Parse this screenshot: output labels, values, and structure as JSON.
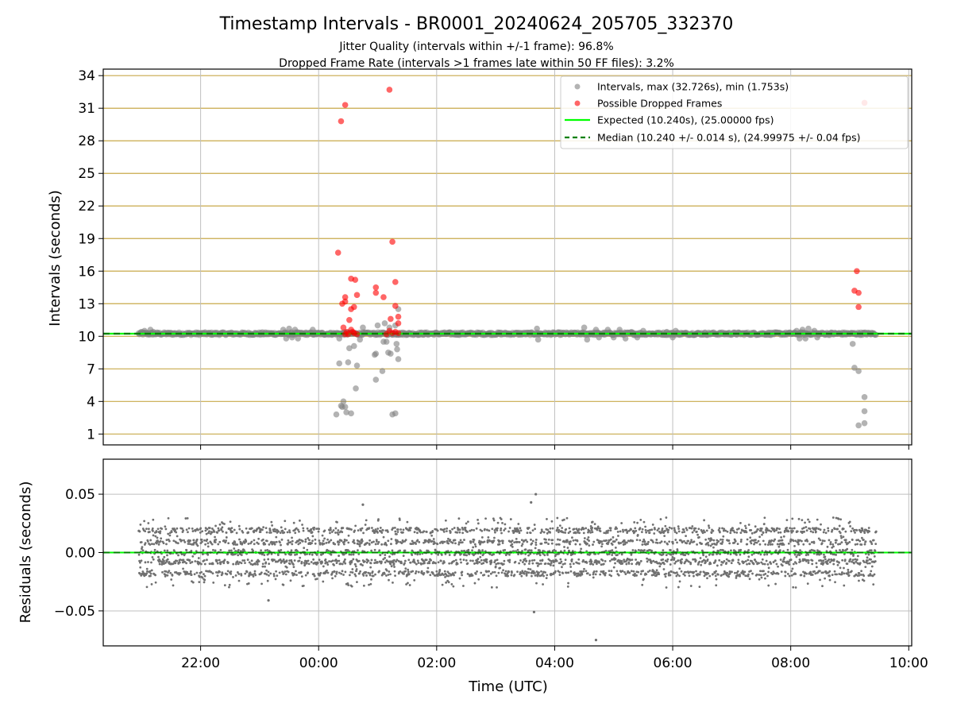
{
  "colors": {
    "intervals": "#808080",
    "dropped": "#ff0000",
    "expected": "#00ff00",
    "median": "#008000",
    "gridline": "#c8a94a",
    "grid_vertical": "#bfbfbf",
    "residuals": "#707070"
  },
  "chart_data": [
    {
      "type": "scatter",
      "title": "Timestamp Intervals - BR0001_20240624_205705_332370",
      "subtitle_lines": [
        "Jitter Quality (intervals within +/-1 frame): 96.8%",
        "Dropped Frame Rate (intervals >1 frames late within 50 FF files): 3.2%"
      ],
      "xlabel": "",
      "ylabel": "Intervals (seconds)",
      "x_unit": "hours since 00:00 UTC",
      "xlim": [
        -3.65,
        10.05
      ],
      "ylim": [
        0,
        34.6
      ],
      "y_ticks": [
        "1",
        "4",
        "7",
        "10",
        "13",
        "16",
        "19",
        "22",
        "25",
        "28",
        "31",
        "34"
      ],
      "y_tick_values": [
        1,
        4,
        7,
        10,
        13,
        16,
        19,
        22,
        25,
        28,
        31,
        34
      ],
      "grid": true,
      "legend_position": "top-right",
      "legend": [
        "Intervals, max (32.726s), min (1.753s)",
        "Possible Dropped Frames",
        "Expected (10.240s), (25.00000 fps)",
        "Median (10.240 +/- 0.014 s), (24.99975 +/- 0.04 fps)"
      ],
      "expected_interval": 10.24,
      "median_interval": 10.24,
      "series": [
        {
          "name": "Intervals, max (32.726s), min (1.753s)",
          "baseline_x_range": [
            -3.05,
            9.45
          ],
          "baseline_y": 10.24,
          "points": [
            [
              -3.0,
              10.4
            ],
            [
              -2.95,
              10.5
            ],
            [
              -2.9,
              10.3
            ],
            [
              -2.85,
              10.6
            ],
            [
              -2.8,
              10.4
            ],
            [
              -0.6,
              10.6
            ],
            [
              -0.55,
              9.8
            ],
            [
              -0.5,
              10.7
            ],
            [
              -0.45,
              9.9
            ],
            [
              -0.4,
              10.6
            ],
            [
              -0.35,
              9.8
            ],
            [
              -0.1,
              10.6
            ],
            [
              -0.05,
              10.2
            ],
            [
              0.35,
              9.8
            ],
            [
              0.3,
              2.8
            ],
            [
              0.35,
              7.5
            ],
            [
              0.38,
              3.6
            ],
            [
              0.4,
              3.5
            ],
            [
              0.42,
              4.0
            ],
            [
              0.45,
              3.5
            ],
            [
              0.47,
              3.0
            ],
            [
              0.5,
              7.6
            ],
            [
              0.52,
              8.9
            ],
            [
              0.55,
              2.9
            ],
            [
              0.6,
              9.1
            ],
            [
              0.63,
              5.2
            ],
            [
              0.65,
              7.3
            ],
            [
              0.7,
              9.7
            ],
            [
              0.75,
              10.8
            ],
            [
              0.95,
              8.3
            ],
            [
              0.97,
              8.4
            ],
            [
              0.97,
              6.0
            ],
            [
              1.0,
              11.0
            ],
            [
              1.08,
              6.8
            ],
            [
              1.1,
              9.5
            ],
            [
              1.12,
              11.2
            ],
            [
              1.15,
              9.5
            ],
            [
              1.18,
              8.5
            ],
            [
              1.2,
              10.8
            ],
            [
              1.22,
              8.4
            ],
            [
              1.25,
              2.8
            ],
            [
              1.3,
              2.9
            ],
            [
              1.32,
              9.3
            ],
            [
              1.33,
              8.8
            ],
            [
              1.35,
              12.5
            ],
            [
              1.35,
              7.9
            ],
            [
              1.3,
              11.0
            ],
            [
              3.7,
              10.7
            ],
            [
              3.72,
              9.7
            ],
            [
              4.5,
              10.8
            ],
            [
              4.55,
              9.7
            ],
            [
              4.6,
              10.3
            ],
            [
              4.7,
              10.6
            ],
            [
              4.75,
              9.9
            ],
            [
              4.9,
              10.6
            ],
            [
              5.0,
              9.9
            ],
            [
              5.1,
              10.6
            ],
            [
              5.2,
              9.8
            ],
            [
              5.3,
              10.4
            ],
            [
              5.4,
              9.9
            ],
            [
              5.5,
              10.5
            ],
            [
              5.9,
              10.4
            ],
            [
              6.0,
              9.9
            ],
            [
              6.05,
              10.5
            ],
            [
              8.1,
              10.5
            ],
            [
              8.15,
              9.8
            ],
            [
              8.2,
              10.6
            ],
            [
              8.25,
              9.8
            ],
            [
              8.3,
              10.7
            ],
            [
              8.4,
              10.5
            ],
            [
              8.45,
              9.9
            ],
            [
              9.05,
              9.3
            ],
            [
              9.08,
              7.1
            ],
            [
              9.15,
              6.8
            ],
            [
              9.15,
              1.8
            ],
            [
              9.25,
              4.4
            ],
            [
              9.25,
              3.1
            ],
            [
              9.25,
              2.0
            ]
          ]
        },
        {
          "name": "Possible Dropped Frames",
          "points": [
            [
              0.33,
              17.7
            ],
            [
              0.38,
              29.8
            ],
            [
              0.45,
              31.3
            ],
            [
              0.55,
              15.3
            ],
            [
              0.62,
              15.2
            ],
            [
              0.65,
              13.8
            ],
            [
              0.45,
              13.6
            ],
            [
              0.4,
              13.0
            ],
            [
              0.45,
              13.2
            ],
            [
              0.55,
              12.5
            ],
            [
              0.6,
              12.7
            ],
            [
              0.52,
              11.5
            ],
            [
              0.42,
              10.8
            ],
            [
              0.55,
              10.6
            ],
            [
              0.48,
              10.4
            ],
            [
              0.58,
              10.4
            ],
            [
              0.45,
              10.2
            ],
            [
              0.5,
              10.2
            ],
            [
              0.6,
              10.3
            ],
            [
              0.65,
              10.2
            ],
            [
              0.97,
              14.5
            ],
            [
              0.97,
              14.0
            ],
            [
              1.1,
              13.6
            ],
            [
              1.2,
              32.7
            ],
            [
              1.25,
              18.7
            ],
            [
              1.3,
              15.0
            ],
            [
              1.3,
              12.8
            ],
            [
              1.22,
              11.6
            ],
            [
              1.35,
              11.8
            ],
            [
              1.35,
              11.2
            ],
            [
              1.2,
              10.5
            ],
            [
              1.25,
              10.3
            ],
            [
              1.3,
              10.4
            ],
            [
              1.35,
              10.3
            ],
            [
              1.15,
              10.2
            ],
            [
              9.08,
              14.2
            ],
            [
              9.12,
              16.0
            ],
            [
              9.15,
              14.0
            ],
            [
              9.15,
              12.7
            ],
            [
              9.25,
              31.5
            ]
          ]
        }
      ]
    },
    {
      "type": "scatter",
      "title": "",
      "xlabel": "Time (UTC)",
      "ylabel": "Residuals (seconds)",
      "xlim": [
        -3.65,
        10.05
      ],
      "ylim": [
        -0.08,
        0.08
      ],
      "x_ticks": [
        "22:00",
        "00:00",
        "02:00",
        "04:00",
        "06:00",
        "08:00",
        "10:00"
      ],
      "x_tick_values": [
        -2,
        0,
        2,
        4,
        6,
        8,
        10
      ],
      "y_ticks": [
        "0.05",
        "0.00",
        "−0.05"
      ],
      "y_tick_values": [
        0.05,
        0,
        -0.05
      ],
      "grid": true,
      "zero_line": 0,
      "residual_x_range": [
        -3.05,
        9.45
      ],
      "residual_bands": [
        -0.018,
        -0.008,
        0.0,
        0.009,
        0.019
      ],
      "residual_outliers": [
        [
          3.65,
          -0.051
        ],
        [
          3.6,
          0.043
        ],
        [
          3.68,
          0.05
        ],
        [
          4.7,
          -0.075
        ],
        [
          0.75,
          0.041
        ],
        [
          -0.85,
          -0.041
        ]
      ]
    }
  ]
}
